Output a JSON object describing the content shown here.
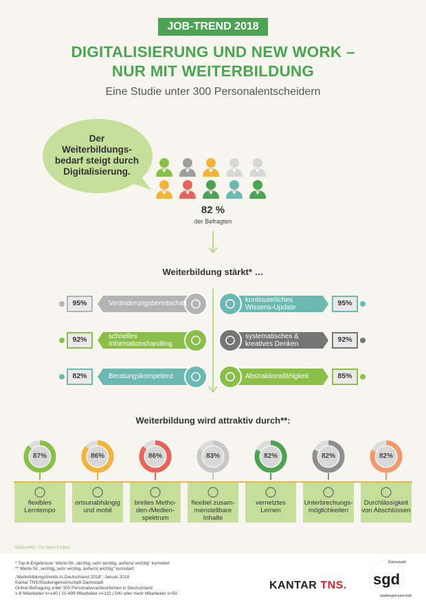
{
  "badge": "JOB-TREND 2018",
  "title_line1": "DIGITALISIERUNG UND NEW WORK –",
  "title_line2": "NUR MIT WEITERBILDUNG",
  "subtitle": "Eine Studie unter 300 Personalentscheidern",
  "bubble": {
    "line1": "Der",
    "line2": "Weiterbildungs-",
    "line3": "bedarf steigt durch",
    "line4": "Digitalisierung."
  },
  "people_colors": [
    "#8ac04a",
    "#9e9e9e",
    "#f0b43c",
    "#d7d7d7",
    "#d7d7d7",
    "#f0b43c",
    "#e6655a",
    "#4ca354",
    "#6bb9b0",
    "#4ca354"
  ],
  "share": {
    "value": "82 %",
    "caption": "der Befragten"
  },
  "strengthens": {
    "heading": "Weiterbildung stärkt* …",
    "left": [
      {
        "label": "Veränderungsbereitschaft",
        "pct": "95%",
        "color": "#b3b3b3",
        "icon": "refresh-icon"
      },
      {
        "label": "schnelles Informationshandling",
        "pct": "92%",
        "color": "#8ac04a",
        "icon": "pointing-hand-icon"
      },
      {
        "label": "Beratungskompetenz",
        "pct": "82%",
        "color": "#6bb9b0",
        "icon": "speech-bubbles-icon"
      }
    ],
    "right": [
      {
        "label": "kontinuierliches Wissens-Update",
        "pct": "95%",
        "color": "#6bb9b0",
        "icon": "lightbulb-icon"
      },
      {
        "label": "systematisches & kreatives Denken",
        "pct": "92%",
        "color": "#757575",
        "icon": "brain-icon"
      },
      {
        "label": "Abstraktionsfähigkeit",
        "pct": "85%",
        "color": "#8ac04a",
        "icon": "dna-icon"
      }
    ]
  },
  "attractive": {
    "heading": "Weiterbildung wird attraktiv durch**:",
    "items": [
      {
        "pct": "87%",
        "value": 87,
        "color": "#8ac04a",
        "lines": [
          "flexibles",
          "Lerntempo"
        ],
        "icon": "clock-icon"
      },
      {
        "pct": "86%",
        "value": 86,
        "color": "#f0b43c",
        "lines": [
          "ortsunabhängig",
          "und mobil"
        ],
        "icon": "smartphone-icon"
      },
      {
        "pct": "86%",
        "value": 86,
        "color": "#e6655a",
        "lines": [
          "breites Metho-",
          "den-/Medien-",
          "spektrum"
        ],
        "icon": "film-icon"
      },
      {
        "pct": "83%",
        "value": 83,
        "color": "#c8c8c8",
        "lines": [
          "flexibel zusam-",
          "menstellbare",
          "Inhalte"
        ],
        "icon": "pencil-icon"
      },
      {
        "pct": "82%",
        "value": 82,
        "color": "#4ca354",
        "lines": [
          "vernetztes",
          "Lernen"
        ],
        "icon": "share-icon"
      },
      {
        "pct": "82%",
        "value": 82,
        "color": "#8f8f8f",
        "lines": [
          "Unterbrechungs-",
          "möglichkeiten"
        ],
        "icon": "pause-icon"
      },
      {
        "pct": "82%",
        "value": 82,
        "color": "#ee9a6e",
        "lines": [
          "Durchlässigkeit",
          "von Abschlüssen"
        ],
        "icon": "award-icon"
      }
    ]
  },
  "credit": "Bildquellen: The Noun Project",
  "footnotes": [
    "* Top-6-Ergebnisse: Werte für „wichtig, sehr wichtig, außerst wichtig“ kumuliert",
    "** Werte für „wichtig, sehr wichtig, äußerst wichtig“ kumuliert",
    "„Weiterbildungstrends in Deutschland 2018“, Januar 2018",
    "Kantar TNS/Studiengemeinschaft Darmstadt",
    "Online-Befragung unter 300 Personalverantwortlichen in Deutschland",
    "1-9 Mitarbeiter n=140 | 10-499 Mitarbeiter n=110 | 500 oder mehr Mitarbeiter n=50"
  ],
  "kantar": {
    "a": "KANTAR ",
    "b": "TNS",
    "c": "."
  },
  "sgd": {
    "logo": "sgd",
    "ring_top": "Darmstadt",
    "ring_bottom": "studiengemeinschaft"
  }
}
